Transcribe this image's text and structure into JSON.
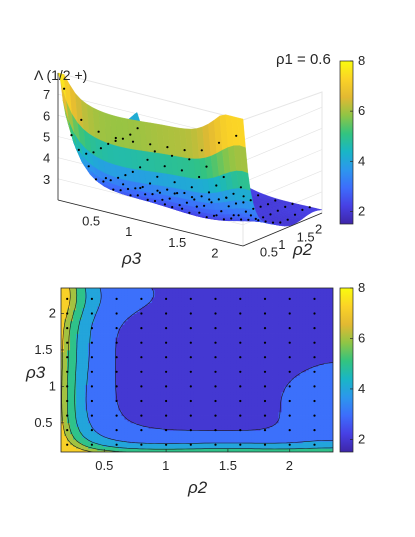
{
  "chart_data": [
    {
      "type": "surface",
      "annotation": "ρ1 = 0.6",
      "zlabel": "Λ (1/2 +)",
      "xlabel": "ρ3",
      "ylabel": "ρ2",
      "x_ticks": [
        "0.5",
        "1",
        "1.5",
        "2"
      ],
      "y_ticks": [
        "0.5",
        "1",
        "1.5",
        "2"
      ],
      "z_ticks": [
        "3",
        "4",
        "5",
        "6",
        "7"
      ],
      "x_range": [
        0.15,
        2.3
      ],
      "y_range": [
        0.15,
        2.3
      ],
      "z_range": [
        2,
        8
      ],
      "colorbar": {
        "ticks": [
          "2",
          "4",
          "6",
          "8"
        ],
        "range": [
          1.5,
          8
        ]
      },
      "colormap": [
        "#3e26a8",
        "#4740e4",
        "#3d6dfc",
        "#2c97ed",
        "#19b6c6",
        "#33c47f",
        "#90c545",
        "#e2b932",
        "#fbd327",
        "#f9fb0e"
      ],
      "marker_color": "#000000"
    },
    {
      "type": "contour",
      "xlabel": "ρ2",
      "ylabel": "ρ3",
      "x_ticks": [
        "0.5",
        "1",
        "1.5",
        "2"
      ],
      "y_ticks": [
        "0.5",
        "1",
        "1.5",
        "2"
      ],
      "x_range": [
        0.15,
        2.35
      ],
      "y_range": [
        0.1,
        2.35
      ],
      "levels": [
        2.5,
        3.5,
        4.5,
        5.5,
        6.5
      ],
      "colorbar": {
        "ticks": [
          "2",
          "4",
          "6",
          "8"
        ],
        "range": [
          1.5,
          8
        ]
      },
      "grid_points_x": [
        0.2,
        0.4,
        0.6,
        0.8,
        1.0,
        1.2,
        1.4,
        1.6,
        1.8,
        2.0,
        2.2
      ],
      "grid_points_y": [
        0.2,
        0.4,
        0.6,
        0.8,
        1.0,
        1.2,
        1.4,
        1.6,
        1.8,
        2.0,
        2.2
      ],
      "colormap": [
        "#3e26a8",
        "#4740e4",
        "#3d6dfc",
        "#2c97ed",
        "#19b6c6",
        "#33c47f",
        "#90c545",
        "#e2b932",
        "#fbd327",
        "#f9fb0e"
      ]
    }
  ]
}
